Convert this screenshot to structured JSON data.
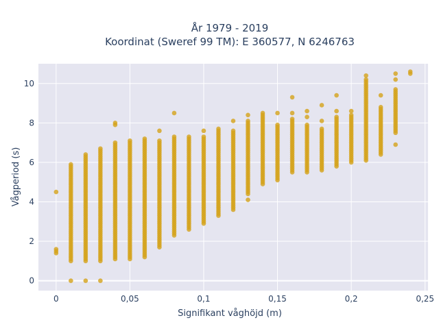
{
  "chart_data": {
    "type": "scatter",
    "title_line1": "År 1979 - 2019",
    "title_line2": "Koordinat (Sweref 99 TM): E 360577, N 6246763",
    "xlabel": "Signifikant våghöjd (m)",
    "ylabel": "Vågperiod (s)",
    "xlim": [
      -0.012,
      0.252
    ],
    "ylim": [
      -0.5,
      11
    ],
    "x_ticks": [
      0,
      0.05,
      0.1,
      0.15,
      0.2,
      0.25
    ],
    "x_tick_labels": [
      "0",
      "0,05",
      "0,1",
      "0,15",
      "0,2",
      "0,25"
    ],
    "y_ticks": [
      0,
      2,
      4,
      6,
      8,
      10
    ],
    "y_tick_labels": [
      "0",
      "2",
      "4",
      "6",
      "8",
      "10"
    ],
    "grid": true,
    "marker_color": "#D4A21A",
    "plot_bg": "#E5E5F0",
    "columns": [
      {
        "x": 0.0,
        "ymin": 1.4,
        "ymax": 1.6,
        "extras": [
          4.5
        ]
      },
      {
        "x": 0.01,
        "ymin": 1.0,
        "ymax": 5.9,
        "extras": [
          0
        ]
      },
      {
        "x": 0.02,
        "ymin": 1.0,
        "ymax": 6.4,
        "extras": [
          0
        ]
      },
      {
        "x": 0.03,
        "ymin": 1.0,
        "ymax": 6.7,
        "extras": [
          0
        ]
      },
      {
        "x": 0.04,
        "ymin": 1.1,
        "ymax": 7.0,
        "extras": [
          7.9,
          8.0
        ]
      },
      {
        "x": 0.05,
        "ymin": 1.1,
        "ymax": 7.1,
        "extras": []
      },
      {
        "x": 0.06,
        "ymin": 1.2,
        "ymax": 7.2,
        "extras": []
      },
      {
        "x": 0.07,
        "ymin": 1.7,
        "ymax": 7.1,
        "extras": [
          7.6
        ]
      },
      {
        "x": 0.08,
        "ymin": 2.3,
        "ymax": 7.3,
        "extras": [
          8.5
        ]
      },
      {
        "x": 0.09,
        "ymin": 2.6,
        "ymax": 7.3,
        "extras": []
      },
      {
        "x": 0.1,
        "ymin": 2.9,
        "ymax": 7.3,
        "extras": [
          7.6
        ]
      },
      {
        "x": 0.11,
        "ymin": 3.3,
        "ymax": 7.7,
        "extras": []
      },
      {
        "x": 0.12,
        "ymin": 3.6,
        "ymax": 7.6,
        "extras": [
          8.1
        ]
      },
      {
        "x": 0.13,
        "ymin": 4.4,
        "ymax": 8.1,
        "extras": [
          4.1,
          8.4
        ]
      },
      {
        "x": 0.14,
        "ymin": 4.9,
        "ymax": 8.5,
        "extras": []
      },
      {
        "x": 0.15,
        "ymin": 5.1,
        "ymax": 7.9,
        "extras": [
          8.5
        ]
      },
      {
        "x": 0.16,
        "ymin": 5.5,
        "ymax": 8.2,
        "extras": [
          8.5,
          9.3
        ]
      },
      {
        "x": 0.17,
        "ymin": 5.5,
        "ymax": 7.9,
        "extras": [
          8.3,
          8.6
        ]
      },
      {
        "x": 0.18,
        "ymin": 5.6,
        "ymax": 7.7,
        "extras": [
          8.1,
          8.9
        ]
      },
      {
        "x": 0.19,
        "ymin": 5.8,
        "ymax": 8.3,
        "extras": [
          8.6,
          9.4
        ]
      },
      {
        "x": 0.2,
        "ymin": 6.0,
        "ymax": 8.4,
        "extras": [
          8.6
        ]
      },
      {
        "x": 0.21,
        "ymin": 6.1,
        "ymax": 10.2,
        "extras": [
          10.4
        ]
      },
      {
        "x": 0.22,
        "ymin": 6.4,
        "ymax": 8.8,
        "extras": [
          9.4
        ]
      },
      {
        "x": 0.23,
        "ymin": 7.5,
        "ymax": 9.7,
        "extras": [
          6.9,
          10.2,
          10.5
        ]
      },
      {
        "x": 0.24,
        "ymin": 10.5,
        "ymax": 10.6,
        "extras": []
      }
    ]
  }
}
